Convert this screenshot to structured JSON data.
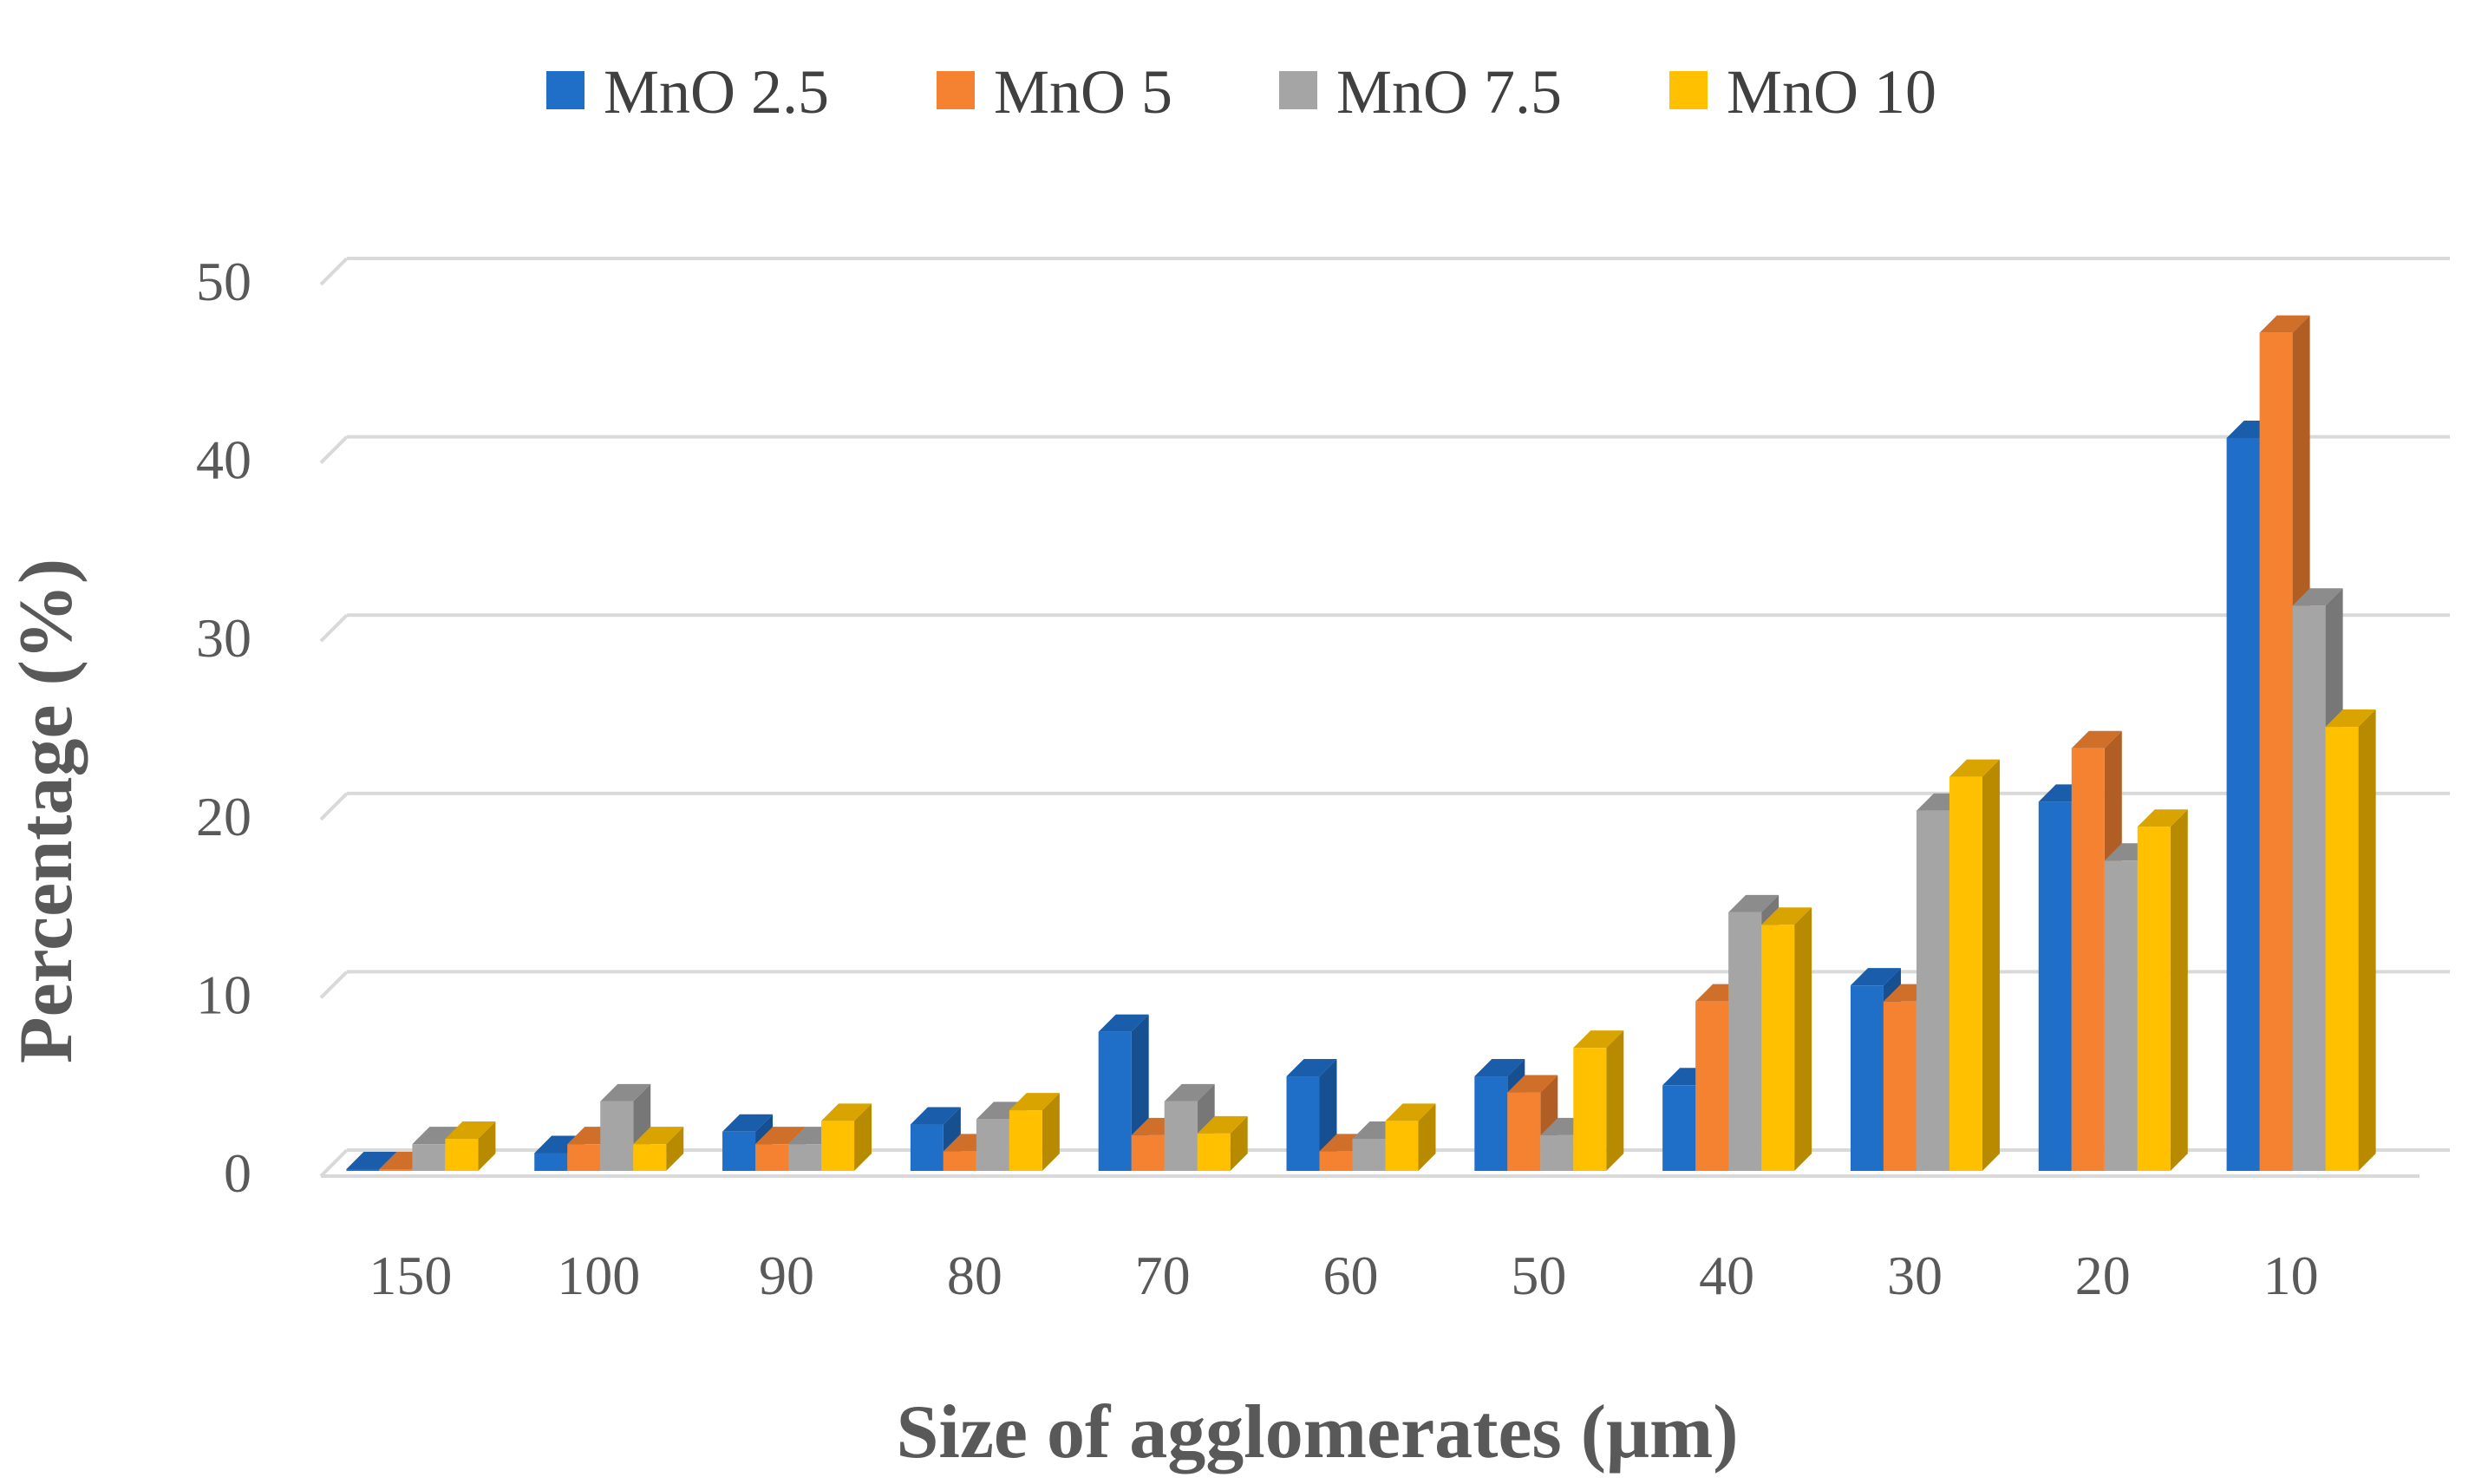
{
  "chart_data": {
    "type": "bar",
    "style": "3d-clustered-column",
    "xlabel": "Size of agglomerates (μm)",
    "ylabel": "Percentage (%)",
    "ylim": [
      0,
      50
    ],
    "yticks": [
      "0",
      "10",
      "20",
      "30",
      "40",
      "50"
    ],
    "grid": true,
    "legend_position": "top",
    "categories": [
      "150",
      "100",
      "90",
      "80",
      "70",
      "60",
      "50",
      "40",
      "30",
      "20",
      "10"
    ],
    "series": [
      {
        "name": "MnO 2.5",
        "color": "#1f6fc9",
        "values": [
          0.1,
          1.0,
          2.2,
          2.6,
          7.8,
          5.3,
          5.3,
          4.8,
          10.4,
          20.7,
          41.1
        ]
      },
      {
        "name": "MnO 5",
        "color": "#f58231",
        "values": [
          0.1,
          1.5,
          1.5,
          1.1,
          2.0,
          1.1,
          4.4,
          9.5,
          9.5,
          23.7,
          47.0
        ]
      },
      {
        "name": "MnO 7.5",
        "color": "#a5a5a5",
        "values": [
          1.5,
          3.9,
          1.5,
          2.9,
          3.9,
          1.8,
          2.0,
          14.5,
          20.2,
          17.4,
          31.7
        ]
      },
      {
        "name": "MnO 10",
        "color": "#ffc000",
        "values": [
          1.8,
          1.5,
          2.8,
          3.4,
          2.1,
          2.8,
          6.9,
          13.8,
          22.1,
          19.3,
          24.9
        ]
      }
    ]
  }
}
